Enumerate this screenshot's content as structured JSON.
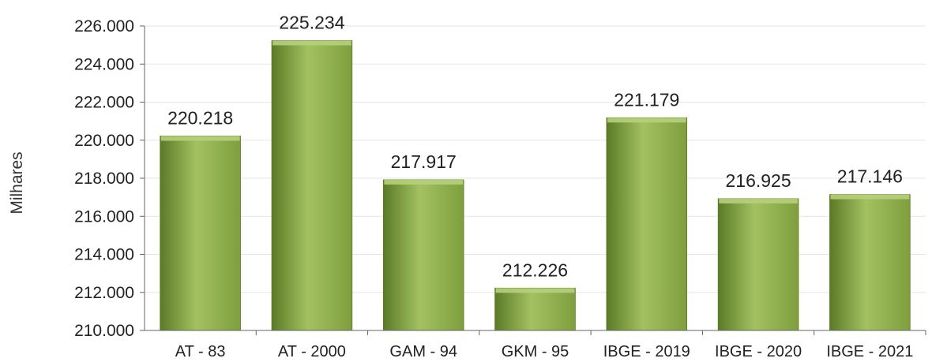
{
  "chart_data": {
    "type": "bar",
    "title": "",
    "xlabel": "",
    "ylabel": "Milhares",
    "categories": [
      "AT - 83",
      "AT - 2000",
      "GAM - 94",
      "GKM - 95",
      "IBGE - 2019",
      "IBGE - 2020",
      "IBGE - 2021"
    ],
    "values": [
      220.218,
      225.234,
      217.917,
      212.226,
      221.179,
      216.925,
      217.146
    ],
    "value_labels": [
      "220.218",
      "225.234",
      "217.917",
      "212.226",
      "221.179",
      "216.925",
      "217.146"
    ],
    "ylim": [
      210,
      226
    ],
    "yticks": [
      210,
      212,
      214,
      216,
      218,
      220,
      222,
      224,
      226
    ],
    "ytick_labels": [
      "210.000",
      "212.000",
      "214.000",
      "216.000",
      "218.000",
      "220.000",
      "222.000",
      "224.000",
      "226.000"
    ],
    "grid": true,
    "legend": "none",
    "colors": {
      "bar_light": "#a3c161",
      "bar_mid": "#7f9e3e",
      "bar_dark": "#5b7a26",
      "bar_top": "#b5d07a"
    }
  }
}
